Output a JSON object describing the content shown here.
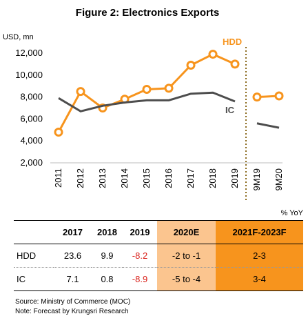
{
  "chart_data": {
    "type": "line",
    "title": "Figure 2: Electronics Exports",
    "ylabel": "USD, mn",
    "ylim": [
      2000,
      12000
    ],
    "yticks": [
      2000,
      4000,
      6000,
      8000,
      10000,
      12000
    ],
    "ytick_labels": [
      "2,000",
      "4,000",
      "6,000",
      "8,000",
      "10,000",
      "12,000"
    ],
    "categories": [
      "2011",
      "2012",
      "2013",
      "2014",
      "2015",
      "2016",
      "2017",
      "2018",
      "2019",
      "9M19",
      "9M20"
    ],
    "series": [
      {
        "name": "HDD",
        "color": "#f7941d",
        "markers": true,
        "values": [
          4800,
          8500,
          7000,
          7800,
          8700,
          8800,
          10900,
          11900,
          11000,
          8000,
          8100
        ]
      },
      {
        "name": "IC",
        "color": "#4d4d4d",
        "markers": false,
        "values": [
          7900,
          6700,
          7200,
          7500,
          7700,
          7700,
          8300,
          8400,
          7600,
          5600,
          5200
        ]
      }
    ],
    "separator_after": "2019",
    "legend_placement": "inline labels",
    "grid": false
  },
  "table": {
    "unit": "% YoY",
    "columns": [
      "2017",
      "2018",
      "2019",
      "2020E",
      "2021F-2023F"
    ],
    "rows": [
      {
        "label": "HDD",
        "cells": [
          "23.6",
          "9.9",
          "-8.2",
          "-2 to -1",
          "2-3"
        ]
      },
      {
        "label": "IC",
        "cells": [
          "7.1",
          "0.8",
          "-8.9",
          "-5 to -4",
          "3-4"
        ]
      }
    ]
  },
  "source": "Source: Ministry of Commerce (MOC)",
  "note": "Note: Forecast by Krungsri Research"
}
